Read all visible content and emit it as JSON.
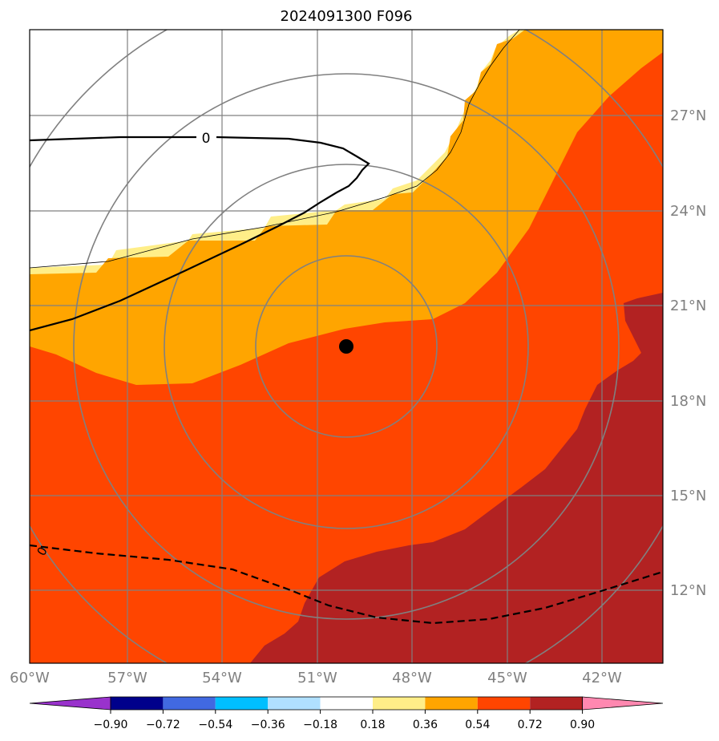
{
  "title": "2024091300 F096",
  "lon_ticks": [
    "60°W",
    "57°W",
    "54°W",
    "51°W",
    "48°W",
    "45°W",
    "42°W"
  ],
  "lat_ticks": [
    "27°N",
    "24°N",
    "21°N",
    "18°N",
    "15°N",
    "12°N"
  ],
  "contour_labels": {
    "solid": "0",
    "dashed": "0"
  },
  "colorbar": {
    "tick_labels": [
      "−0.90",
      "−0.72",
      "−0.54",
      "−0.36",
      "−0.18",
      "0.18",
      "0.36",
      "0.54",
      "0.72",
      "0.90"
    ],
    "colors": [
      "#9932cc",
      "#00008b",
      "#4169e1",
      "#00bfff",
      "#b0e0ff",
      "#ffffff",
      "#ffee88",
      "#ffa500",
      "#ff4500",
      "#b22222",
      "#ff88b0"
    ]
  },
  "colors": {
    "orange": "#ffa500",
    "red_orange": "#ff4500",
    "dark_red": "#b22222",
    "light_yellow": "#ffee88",
    "grid": "#808080"
  }
}
